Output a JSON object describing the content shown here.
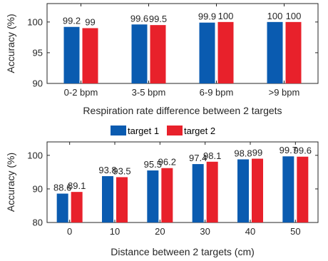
{
  "legend": {
    "entries": [
      {
        "label": "target 1",
        "color": "#0a5bb0"
      },
      {
        "label": "target 2",
        "color": "#e8212b"
      }
    ],
    "placement": "between-charts"
  },
  "chart_data": [
    {
      "type": "bar",
      "categories": [
        "0-2 bpm",
        "3-5 bpm",
        "6-9 bpm",
        ">9 bpm"
      ],
      "series": [
        {
          "name": "target 1",
          "values": [
            99.2,
            99.6,
            99.9,
            100
          ],
          "labels": [
            "99.2",
            "99.6",
            "99.9",
            "100"
          ],
          "color": "#0a5bb0"
        },
        {
          "name": "target 2",
          "values": [
            99,
            99.5,
            100,
            100
          ],
          "labels": [
            "99",
            "99.5",
            "100",
            "100"
          ],
          "color": "#e8212b"
        }
      ],
      "xlabel": "Respiration rate difference between 2 targets",
      "ylabel": "Accuracy (%)",
      "ylim": [
        90,
        103
      ],
      "yticks": [
        90,
        95,
        100
      ],
      "grid": false
    },
    {
      "type": "bar",
      "categories": [
        "0",
        "10",
        "20",
        "30",
        "40",
        "50"
      ],
      "series": [
        {
          "name": "target 1",
          "values": [
            88.6,
            93.8,
            95.5,
            97.4,
            98.8,
            99.7
          ],
          "labels": [
            "88.6",
            "93.8",
            "95.5",
            "97.4",
            "98.8",
            "99.7"
          ],
          "color": "#0a5bb0"
        },
        {
          "name": "target 2",
          "values": [
            89.1,
            93.5,
            96.2,
            98.1,
            99,
            99.6
          ],
          "labels": [
            "89.1",
            "93.5",
            "96.2",
            "98.1",
            "99",
            "99.6"
          ],
          "color": "#e8212b"
        }
      ],
      "xlabel": "Distance between 2 targets (cm)",
      "ylabel": "Accuracy (%)",
      "ylim": [
        80,
        104
      ],
      "yticks": [
        80,
        90,
        100
      ],
      "grid": false
    }
  ]
}
